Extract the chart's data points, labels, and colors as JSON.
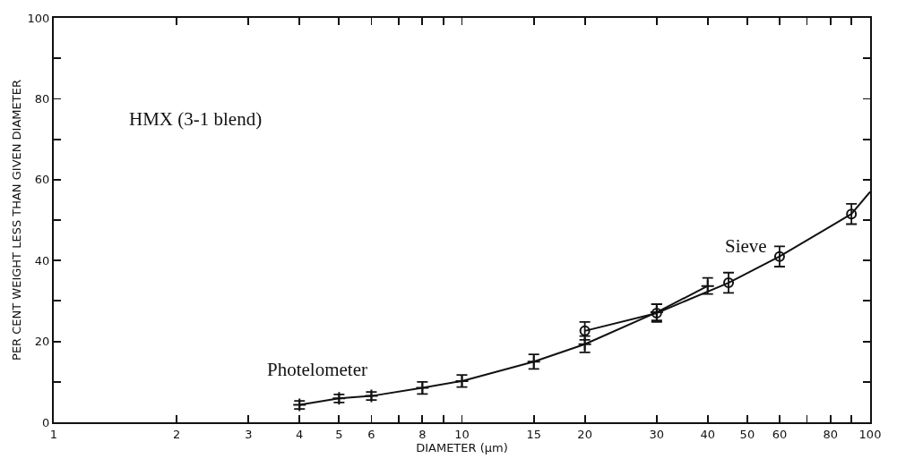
{
  "chart_data": {
    "type": "line",
    "xlabel": "DIAMETER (μm)",
    "ylabel": "PER CENT WEIGHT LESS THAN GIVEN DIAMETER",
    "log": "x",
    "xlim": [
      1,
      100
    ],
    "ylim": [
      0,
      100
    ],
    "xticks": [
      1,
      2,
      3,
      4,
      5,
      6,
      {
        "value": 7,
        "label": null
      },
      8,
      {
        "value": 9,
        "label": null
      },
      10,
      15,
      20,
      30,
      40,
      50,
      60,
      {
        "value": 70,
        "label": null
      },
      80,
      {
        "value": 90,
        "label": null
      },
      100
    ],
    "yticks": [
      0,
      {
        "value": 10,
        "label": null
      },
      20,
      {
        "value": 30,
        "label": null
      },
      40,
      {
        "value": 50,
        "label": null
      },
      60,
      {
        "value": 70,
        "label": null
      },
      80,
      {
        "value": 90,
        "label": null
      },
      100
    ],
    "grid": false,
    "legend": false,
    "series": [
      {
        "name": "Photelometer",
        "color": "#111111",
        "marker": "cross",
        "x": [
          4,
          5,
          6,
          8,
          10,
          15,
          20,
          30,
          40
        ],
        "values": [
          4.3,
          5.9,
          6.5,
          8.5,
          10.2,
          15,
          19.3,
          27.2,
          33.7
        ],
        "errors": [
          1,
          1,
          1,
          1.5,
          1.5,
          1.8,
          2,
          2,
          2
        ]
      },
      {
        "name": "Sieve",
        "color": "#111111",
        "marker": "circle",
        "x": [
          20,
          30,
          45,
          60,
          90
        ],
        "values": [
          22.6,
          27,
          34.5,
          41,
          51.5
        ],
        "errors": [
          2.2,
          2.2,
          2.5,
          2.5,
          2.5
        ]
      },
      {
        "type": "line",
        "color": "#111111",
        "marker": "none",
        "x": [
          90,
          100
        ],
        "values": [
          51.5,
          57
        ]
      }
    ],
    "annotations": [
      "HMX (3-1 blend)"
    ]
  }
}
